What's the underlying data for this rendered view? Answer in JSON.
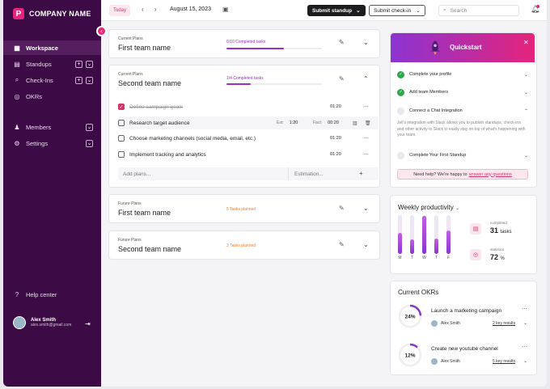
{
  "app": {
    "name": "COMPANY NAME",
    "logo_letter": "P"
  },
  "sidebar": {
    "items": [
      {
        "label": "Workspace",
        "icon": "grid-icon"
      },
      {
        "label": "Standups",
        "icon": "document-icon"
      },
      {
        "label": "Check-Ins",
        "icon": "search-icon"
      },
      {
        "label": "OKRs",
        "icon": "target-icon"
      },
      {
        "label": "Members",
        "icon": "users-icon"
      },
      {
        "label": "Settings",
        "icon": "gear-icon"
      }
    ],
    "help": "Help center",
    "user": {
      "name": "Alex Smith",
      "email": "alex.smith@gmail.com"
    }
  },
  "topbar": {
    "today": "Today",
    "date": "August 15, 2023",
    "submit_standup": "Submit standup",
    "submit_checkin": "Submit check-in",
    "search_placeholder": "Search"
  },
  "plans": [
    {
      "type": "Current Plans",
      "name": "First team name",
      "progress_text": "6/10  Completed tasks",
      "progress": 0.6
    },
    {
      "type": "Current Plans",
      "name": "Second team name",
      "progress_text": "1/4  Completed tasks",
      "progress": 0.25,
      "tasks": [
        {
          "title": "Define campaign goals",
          "done": true,
          "time": "01:20"
        },
        {
          "title": "Research target audience",
          "done": false,
          "est_label": "Est:",
          "est": "1:20",
          "fact_label": "Fact:",
          "fact": "00:20"
        },
        {
          "title": "Choose marketing channels (social media, email, etc.)",
          "done": false,
          "time": "01:20"
        },
        {
          "title": "Implement tracking and analytics",
          "done": false,
          "time": "01:20"
        }
      ],
      "add_placeholder": "Add plans...",
      "estimation_placeholder": "Estimation..."
    },
    {
      "type": "Furure Plans",
      "name": "First team name",
      "status": "5 Tasks planned"
    },
    {
      "type": "Furure Plans",
      "name": "Second team name",
      "status": "3 Tasks planned"
    }
  ],
  "quickstart": {
    "title": "Quickstart",
    "items": [
      {
        "label": "Complete your profile",
        "done": true
      },
      {
        "label": "Add team Members",
        "done": true
      },
      {
        "label": "Connect a Chat Integration",
        "done": false
      },
      {
        "label": "Complete Your First Standup",
        "done": false
      }
    ],
    "description": "Jell's integration with Slack allows you to publish standups, check-ins and other activity to Slack to easily stay on top of what's happening with your team.",
    "help_text": "Need help? We're happy to",
    "help_link": "answer any questions"
  },
  "productivity": {
    "title": "Weekly productivity",
    "days": [
      "M",
      "T",
      "W",
      "T",
      "F"
    ],
    "values": [
      0.55,
      0.38,
      0.97,
      0.4,
      0.6
    ],
    "completed_label": "completed",
    "completed_value": "31",
    "completed_unit": "tasks",
    "statistics_label": "statistics",
    "statistics_value": "72",
    "statistics_unit": "%"
  },
  "okrs": {
    "title": "Current OKRs",
    "items": [
      {
        "percent_text": "24%",
        "percent": 0.24,
        "title": "Launch a marketing campaign",
        "owner": "Alex Smith",
        "key_results": "2 key results"
      },
      {
        "percent_text": "12%",
        "percent": 0.12,
        "title": "Create new youtube channel",
        "owner": "Alex Smith",
        "key_results": "5 key results"
      }
    ]
  },
  "colors": {
    "sidebar": "#3c0a45",
    "accent": "#e5247b",
    "purple": "#9b2fc9",
    "success": "#2aa84a",
    "warning": "#f07c2a"
  }
}
